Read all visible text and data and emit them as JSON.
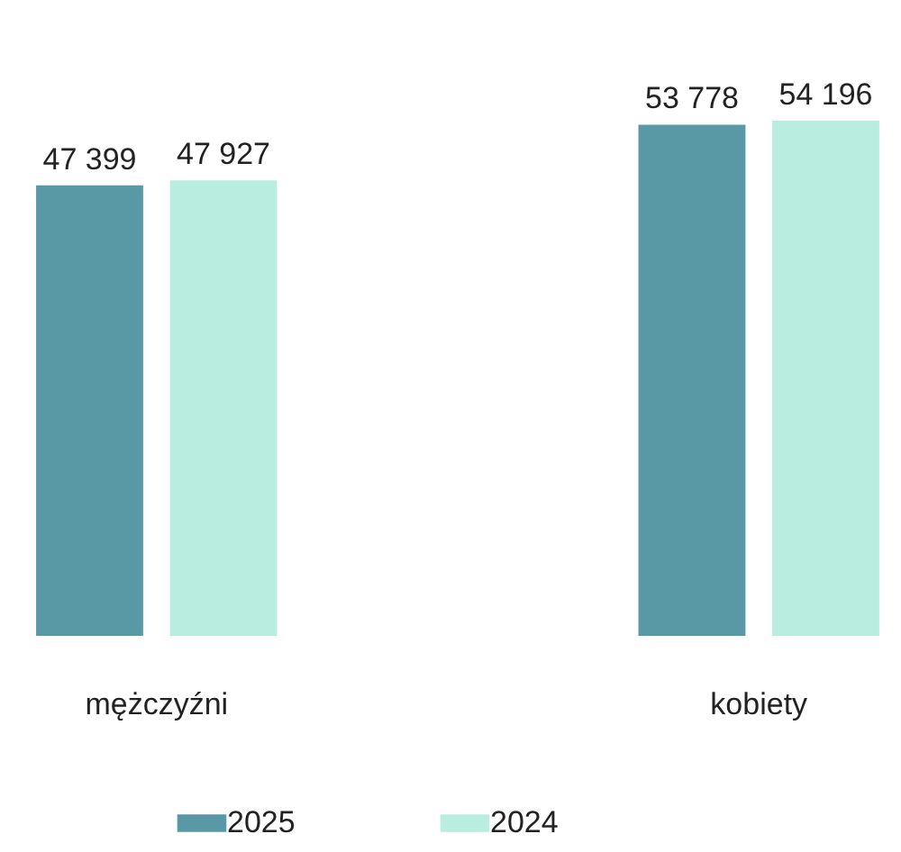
{
  "chart_data": {
    "type": "bar",
    "categories": [
      "mężczyźni",
      "kobiety"
    ],
    "series": [
      {
        "name": "2025",
        "color": "#5899a5",
        "values": [
          47399,
          53778
        ],
        "value_labels": [
          "47 399",
          "53 778"
        ]
      },
      {
        "name": "2024",
        "color": "#b9ede0",
        "values": [
          47927,
          54196
        ],
        "value_labels": [
          "47 927",
          "54 196"
        ]
      }
    ],
    "legend": "bottom",
    "grid": false
  }
}
